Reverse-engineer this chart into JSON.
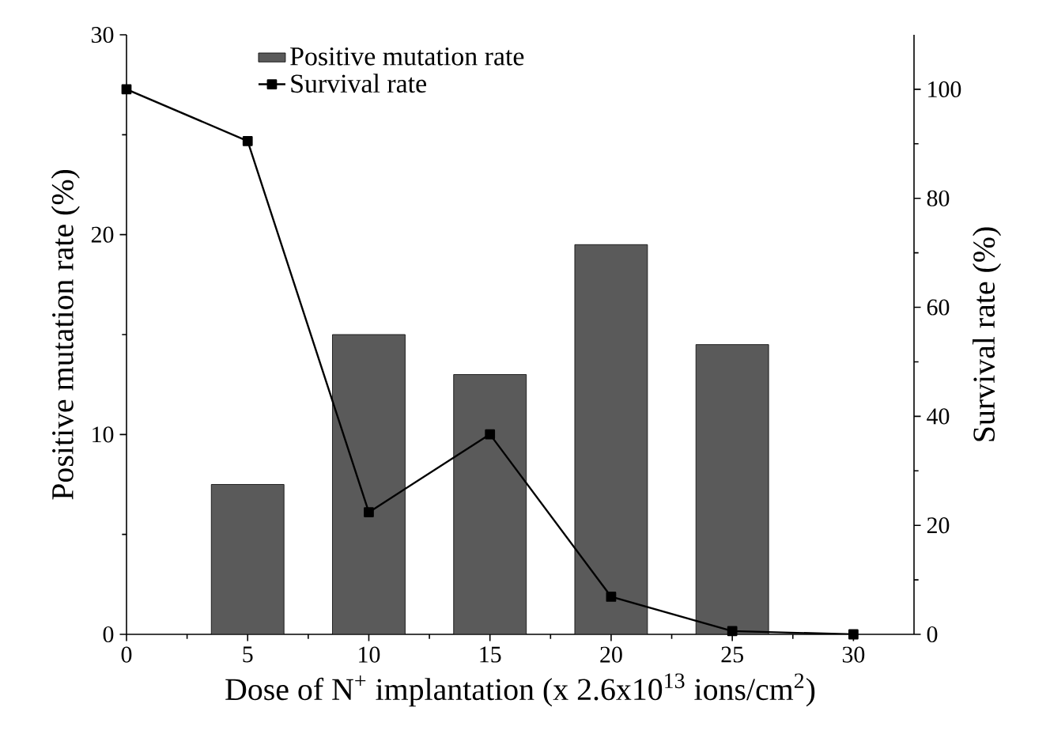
{
  "chart_data": {
    "type": "bar",
    "xlabel": "Dose of N$^{+}$ implantation (x 2.6x10$^{13}$ ions/cm$^{2}$)",
    "ylabel": "Positive mutation rate (%)",
    "y2label": "Survival rate (%)",
    "x": [
      0,
      5,
      10,
      15,
      20,
      25,
      30
    ],
    "series": [
      {
        "name": "Positive mutation rate",
        "color": "#5a5a5a",
        "values": [
          null,
          7.5,
          15.0,
          13.0,
          19.5,
          14.5,
          null
        ]
      },
      {
        "name": "Survival rate",
        "type": "line",
        "axis": "y2",
        "color": "#000000",
        "marker": "square",
        "values": [
          100,
          90.5,
          22.4,
          36.7,
          6.9,
          0.6,
          0
        ]
      }
    ],
    "xlim": [
      0,
      32.5
    ],
    "xticks": [
      0,
      5,
      10,
      15,
      20,
      25,
      30
    ],
    "ylim": [
      0,
      30
    ],
    "yticks": [
      0,
      10,
      20,
      30
    ],
    "y2lim": [
      0,
      110
    ],
    "y2ticks": [
      0,
      20,
      40,
      60,
      80,
      100
    ],
    "legend": "top left"
  }
}
